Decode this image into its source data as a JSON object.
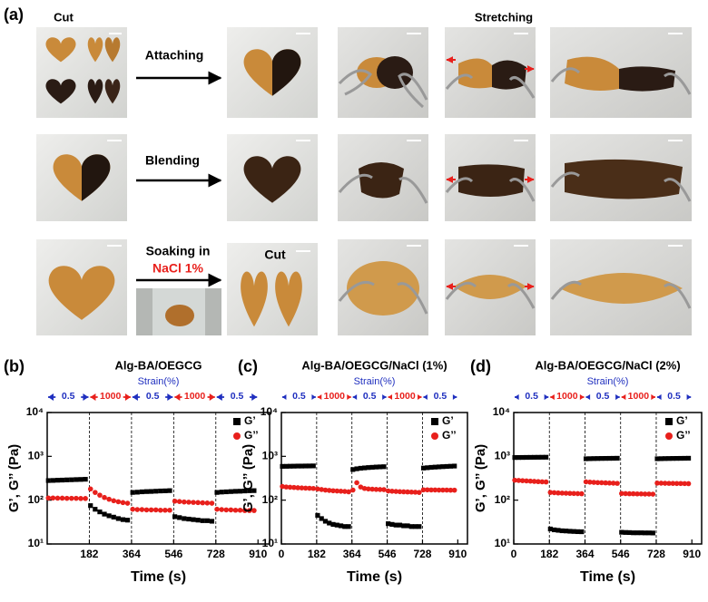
{
  "panel_a": {
    "label": "(a)",
    "cut_top": "Cut",
    "stretching": "Stretching",
    "attaching": "Attaching",
    "blending": "Blending",
    "soaking": "Soaking in",
    "nacl": "NaCl 1%",
    "cut_row3": "Cut"
  },
  "chart_data": [
    {
      "type": "scatter",
      "panel_label": "(b)",
      "title": "Alg-BA/OEGCG",
      "xlabel": "Time (s)",
      "ylabel": "G’, G’’ (Pa)",
      "strain": {
        "label": "Strain(%)",
        "values": [
          0.5,
          1000,
          0.5,
          1000,
          0.5
        ],
        "colors": [
          "#1f2fbf",
          "#e8201c",
          "#1f2fbf",
          "#e8201c",
          "#1f2fbf"
        ]
      },
      "segment_edges": [
        0,
        182,
        364,
        546,
        728,
        910
      ],
      "xlim": [
        0,
        960
      ],
      "xticks": [
        182,
        364,
        546,
        728,
        910
      ],
      "log_y": true,
      "ylim": [
        10,
        10000
      ],
      "yticks": [
        {
          "value": 10,
          "label": "10¹"
        },
        {
          "value": 100,
          "label": "10²"
        },
        {
          "value": 1000,
          "label": "10³"
        },
        {
          "value": 10000,
          "label": "10⁴"
        }
      ],
      "x": [
        5,
        25,
        45,
        65,
        85,
        105,
        125,
        145,
        165,
        187,
        207,
        227,
        247,
        267,
        287,
        307,
        327,
        347,
        369,
        389,
        409,
        429,
        449,
        469,
        489,
        509,
        529,
        551,
        571,
        591,
        611,
        631,
        651,
        671,
        691,
        711,
        733,
        753,
        773,
        793,
        813,
        833,
        853,
        873,
        893
      ],
      "series": [
        {
          "name": "G’",
          "color": "#000000",
          "marker": "square",
          "values": [
            280,
            282,
            285,
            287,
            290,
            292,
            295,
            297,
            300,
            75,
            62,
            54,
            48,
            44,
            41,
            38,
            36,
            35,
            150,
            152,
            155,
            157,
            158,
            160,
            162,
            163,
            165,
            42,
            40,
            38,
            37,
            36,
            35,
            34,
            34,
            33,
            150,
            153,
            155,
            157,
            159,
            160,
            162,
            164,
            165
          ]
        },
        {
          "name": "G’’",
          "color": "#e8201c",
          "marker": "circle",
          "values": [
            112,
            112,
            111,
            111,
            110,
            110,
            110,
            109,
            109,
            180,
            150,
            130,
            115,
            105,
            97,
            92,
            88,
            85,
            62,
            61,
            61,
            60,
            60,
            60,
            59,
            59,
            59,
            95,
            93,
            91,
            90,
            89,
            88,
            87,
            86,
            85,
            62,
            61,
            60,
            60,
            59,
            59,
            58,
            58,
            58
          ]
        }
      ]
    },
    {
      "type": "scatter",
      "panel_label": "(c)",
      "title": "Alg-BA/OEGCG/NaCl (1%)",
      "xlabel": "Time (s)",
      "ylabel": "G’, G’’ (Pa)",
      "strain": {
        "label": "Strain(%)",
        "values": [
          0.5,
          1000,
          0.5,
          1000,
          0.5
        ],
        "colors": [
          "#1f2fbf",
          "#e8201c",
          "#1f2fbf",
          "#e8201c",
          "#1f2fbf"
        ]
      },
      "segment_edges": [
        0,
        182,
        364,
        546,
        728,
        910
      ],
      "xlim": [
        0,
        960
      ],
      "xticks": [
        0,
        182,
        364,
        546,
        728,
        910
      ],
      "log_y": true,
      "ylim": [
        10,
        10000
      ],
      "yticks": [
        {
          "value": 10,
          "label": "10¹"
        },
        {
          "value": 100,
          "label": "10²"
        },
        {
          "value": 1000,
          "label": "10³"
        },
        {
          "value": 10000,
          "label": "10⁴"
        }
      ],
      "x": [
        5,
        25,
        45,
        65,
        85,
        105,
        125,
        145,
        165,
        187,
        207,
        227,
        247,
        267,
        287,
        307,
        327,
        347,
        369,
        389,
        409,
        429,
        449,
        469,
        489,
        509,
        529,
        551,
        571,
        591,
        611,
        631,
        651,
        671,
        691,
        711,
        733,
        753,
        773,
        793,
        813,
        833,
        853,
        873,
        893
      ],
      "series": [
        {
          "name": "G’",
          "color": "#000000",
          "marker": "square",
          "values": [
            590,
            592,
            595,
            597,
            600,
            600,
            602,
            603,
            605,
            45,
            38,
            33,
            30,
            28,
            27,
            26,
            25,
            25,
            500,
            520,
            535,
            545,
            555,
            562,
            570,
            575,
            580,
            29,
            28,
            27,
            27,
            26,
            26,
            25,
            25,
            25,
            540,
            550,
            560,
            568,
            575,
            582,
            588,
            594,
            600
          ]
        },
        {
          "name": "G’’",
          "color": "#e8201c",
          "marker": "circle",
          "values": [
            205,
            200,
            197,
            195,
            192,
            190,
            188,
            187,
            185,
            180,
            175,
            170,
            167,
            164,
            162,
            160,
            158,
            155,
            170,
            250,
            200,
            185,
            180,
            178,
            176,
            175,
            174,
            162,
            160,
            158,
            156,
            155,
            154,
            153,
            152,
            150,
            172,
            172,
            171,
            171,
            170,
            170,
            170,
            169,
            169
          ]
        }
      ]
    },
    {
      "type": "scatter",
      "panel_label": "(d)",
      "title": "Alg-BA/OEGCG/NaCl (2%)",
      "xlabel": "Time (s)",
      "ylabel": "G’, G’’ (Pa)",
      "strain": {
        "label": "Strain(%)",
        "values": [
          0.5,
          1000,
          0.5,
          1000,
          0.5
        ],
        "colors": [
          "#1f2fbf",
          "#e8201c",
          "#1f2fbf",
          "#e8201c",
          "#1f2fbf"
        ]
      },
      "segment_edges": [
        0,
        182,
        364,
        546,
        728,
        910
      ],
      "xlim": [
        0,
        960
      ],
      "xticks": [
        0,
        182,
        364,
        546,
        728,
        910
      ],
      "log_y": true,
      "ylim": [
        10,
        10000
      ],
      "yticks": [
        {
          "value": 10,
          "label": "10¹"
        },
        {
          "value": 100,
          "label": "10²"
        },
        {
          "value": 1000,
          "label": "10³"
        },
        {
          "value": 10000,
          "label": "10⁴"
        }
      ],
      "x": [
        5,
        25,
        45,
        65,
        85,
        105,
        125,
        145,
        165,
        187,
        207,
        227,
        247,
        267,
        287,
        307,
        327,
        347,
        369,
        389,
        409,
        429,
        449,
        469,
        489,
        509,
        529,
        551,
        571,
        591,
        611,
        631,
        651,
        671,
        691,
        711,
        733,
        753,
        773,
        793,
        813,
        833,
        853,
        873,
        893
      ],
      "series": [
        {
          "name": "G’",
          "color": "#000000",
          "marker": "square",
          "values": [
            940,
            942,
            944,
            946,
            948,
            950,
            952,
            954,
            955,
            22,
            21,
            20.5,
            20,
            19.8,
            19.5,
            19.3,
            19.1,
            19,
            880,
            885,
            890,
            893,
            896,
            898,
            900,
            902,
            905,
            18.5,
            18.3,
            18.2,
            18,
            18,
            18,
            17.9,
            17.9,
            17.8,
            880,
            885,
            890,
            893,
            896,
            898,
            900,
            902,
            905
          ]
        },
        {
          "name": "G’’",
          "color": "#e8201c",
          "marker": "circle",
          "values": [
            285,
            282,
            278,
            275,
            272,
            268,
            265,
            262,
            260,
            150,
            148,
            146,
            145,
            144,
            143,
            142,
            141,
            140,
            262,
            258,
            255,
            252,
            250,
            248,
            246,
            244,
            242,
            142,
            141,
            140,
            140,
            139,
            139,
            138,
            138,
            137,
            245,
            244,
            243,
            242,
            241,
            240,
            240,
            239,
            238
          ]
        }
      ]
    }
  ]
}
